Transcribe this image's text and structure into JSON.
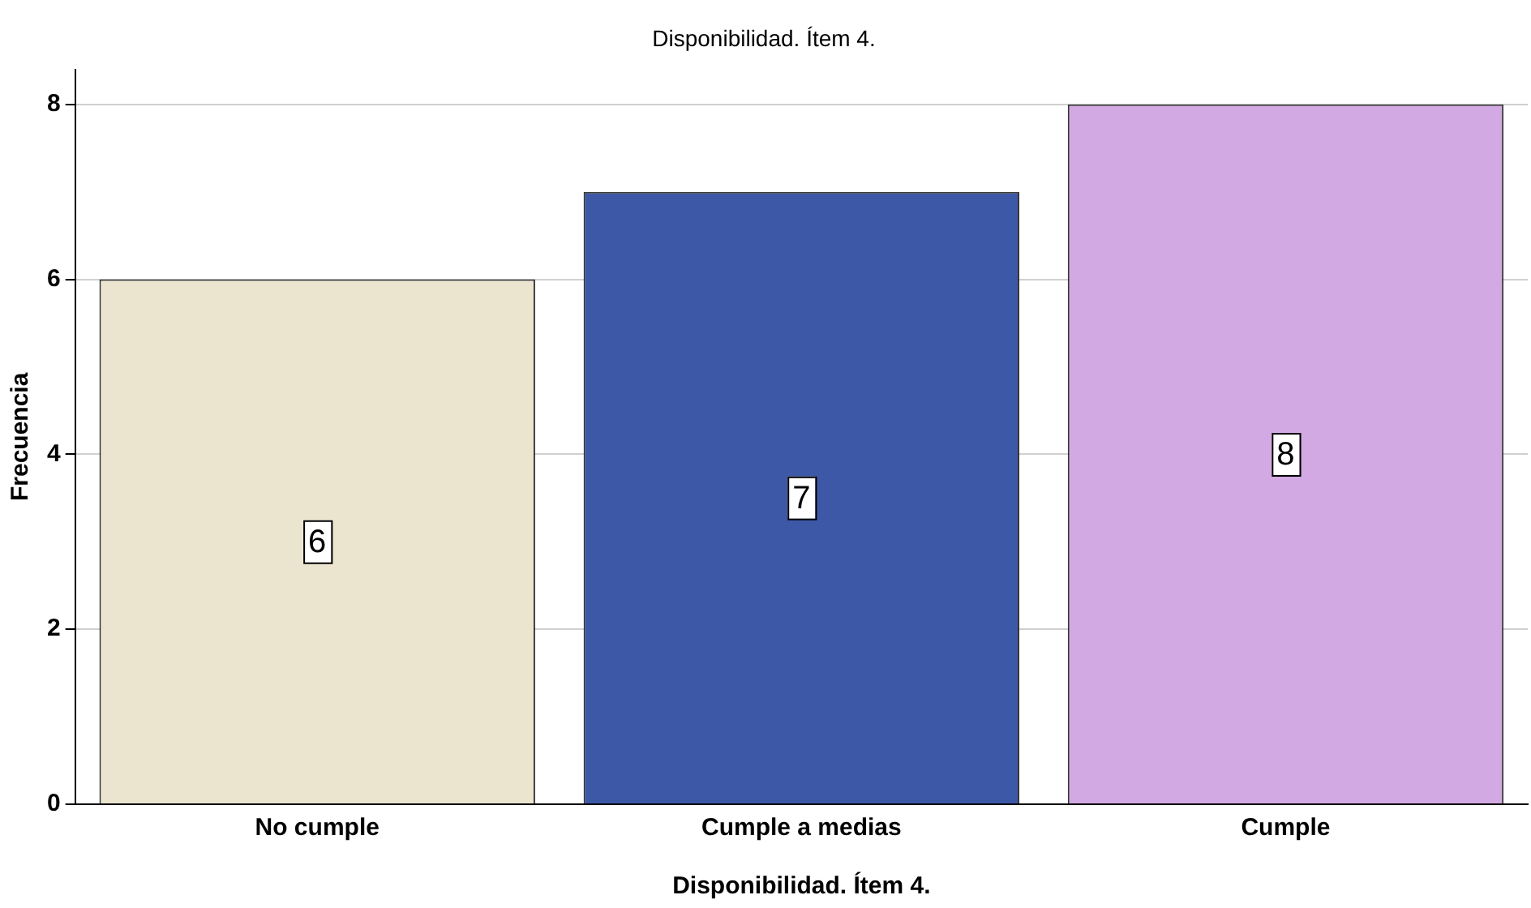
{
  "chart_data": {
    "type": "bar",
    "title": "Disponibilidad. Ítem 4.",
    "xlabel": "Disponibilidad. Ítem 4.",
    "ylabel": "Frecuencia",
    "categories": [
      "No cumple",
      "Cumple a medias",
      "Cumple"
    ],
    "values": [
      6,
      7,
      8
    ],
    "colors": [
      "#ebe5d0",
      "#3e58a8",
      "#d2a9e3"
    ],
    "ylim": [
      0,
      8.4
    ],
    "yticks": [
      0,
      2,
      4,
      6,
      8
    ],
    "grid": "y",
    "data_labels": true,
    "legend": false
  }
}
